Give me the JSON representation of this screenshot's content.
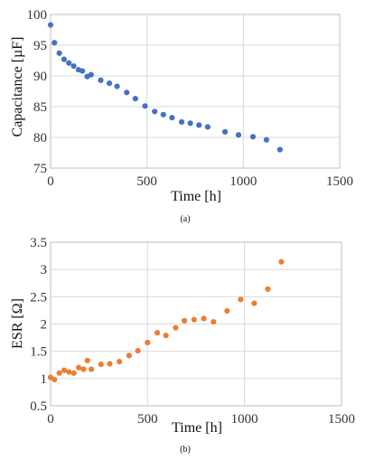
{
  "chart_data": [
    {
      "type": "scatter",
      "caption": "(a)",
      "xlabel": "Time [h]",
      "ylabel": "Capacitance [µF]",
      "xlim": [
        0,
        1500
      ],
      "ylim": [
        75,
        100
      ],
      "xticks": [
        0,
        500,
        1000,
        1500
      ],
      "yticks": [
        75,
        80,
        85,
        90,
        95,
        100
      ],
      "grid": true,
      "color": "#4472c4",
      "points": [
        {
          "x": 0,
          "y": 98.3
        },
        {
          "x": 20,
          "y": 95.4
        },
        {
          "x": 45,
          "y": 93.7
        },
        {
          "x": 70,
          "y": 92.7
        },
        {
          "x": 95,
          "y": 92.1
        },
        {
          "x": 120,
          "y": 91.6
        },
        {
          "x": 145,
          "y": 91.0
        },
        {
          "x": 165,
          "y": 90.8
        },
        {
          "x": 190,
          "y": 89.9
        },
        {
          "x": 210,
          "y": 90.2
        },
        {
          "x": 260,
          "y": 89.3
        },
        {
          "x": 305,
          "y": 88.8
        },
        {
          "x": 345,
          "y": 88.3
        },
        {
          "x": 395,
          "y": 87.3
        },
        {
          "x": 440,
          "y": 86.3
        },
        {
          "x": 490,
          "y": 85.1
        },
        {
          "x": 540,
          "y": 84.2
        },
        {
          "x": 585,
          "y": 83.7
        },
        {
          "x": 630,
          "y": 83.2
        },
        {
          "x": 680,
          "y": 82.5
        },
        {
          "x": 725,
          "y": 82.3
        },
        {
          "x": 770,
          "y": 82.0
        },
        {
          "x": 815,
          "y": 81.7
        },
        {
          "x": 905,
          "y": 80.9
        },
        {
          "x": 975,
          "y": 80.4
        },
        {
          "x": 1050,
          "y": 80.1
        },
        {
          "x": 1120,
          "y": 79.6
        },
        {
          "x": 1190,
          "y": 78.0
        }
      ]
    },
    {
      "type": "scatter",
      "caption": "(b)",
      "xlabel": "Time [h]",
      "ylabel": "ESR [Ω]",
      "xlim": [
        0,
        1500
      ],
      "ylim": [
        0.5,
        3.5
      ],
      "xticks": [
        0,
        500,
        1000,
        1500
      ],
      "yticks": [
        0.5,
        1,
        1.5,
        2,
        2.5,
        3,
        3.5
      ],
      "grid": true,
      "color": "#ed7d31",
      "points": [
        {
          "x": 0,
          "y": 1.02
        },
        {
          "x": 20,
          "y": 0.98
        },
        {
          "x": 45,
          "y": 1.1
        },
        {
          "x": 70,
          "y": 1.15
        },
        {
          "x": 95,
          "y": 1.12
        },
        {
          "x": 120,
          "y": 1.1
        },
        {
          "x": 145,
          "y": 1.2
        },
        {
          "x": 170,
          "y": 1.17
        },
        {
          "x": 190,
          "y": 1.33
        },
        {
          "x": 210,
          "y": 1.17
        },
        {
          "x": 260,
          "y": 1.26
        },
        {
          "x": 305,
          "y": 1.27
        },
        {
          "x": 355,
          "y": 1.31
        },
        {
          "x": 405,
          "y": 1.42
        },
        {
          "x": 450,
          "y": 1.51
        },
        {
          "x": 500,
          "y": 1.66
        },
        {
          "x": 550,
          "y": 1.84
        },
        {
          "x": 595,
          "y": 1.79
        },
        {
          "x": 645,
          "y": 1.93
        },
        {
          "x": 690,
          "y": 2.06
        },
        {
          "x": 740,
          "y": 2.08
        },
        {
          "x": 790,
          "y": 2.1
        },
        {
          "x": 840,
          "y": 2.04
        },
        {
          "x": 910,
          "y": 2.24
        },
        {
          "x": 980,
          "y": 2.45
        },
        {
          "x": 1050,
          "y": 2.38
        },
        {
          "x": 1120,
          "y": 2.64
        },
        {
          "x": 1190,
          "y": 3.14
        }
      ]
    }
  ]
}
